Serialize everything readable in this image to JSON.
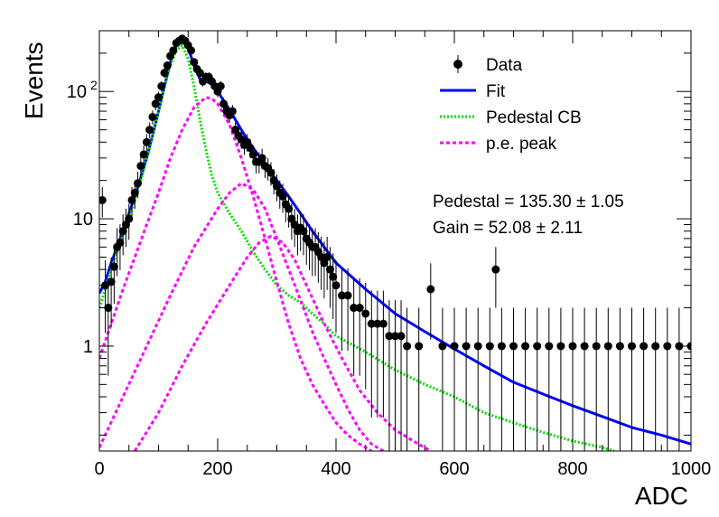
{
  "chart_data": {
    "type": "scatter",
    "title": "",
    "xlabel": "ADC",
    "ylabel": "Events",
    "xlim": [
      0,
      1000
    ],
    "ylim": [
      0.15,
      300
    ],
    "yscale": "log",
    "grid": false,
    "legend_position": "top-right",
    "x_ticks": [
      {
        "value": 0,
        "label": "0"
      },
      {
        "value": 200,
        "label": "200"
      },
      {
        "value": 400,
        "label": "400"
      },
      {
        "value": 600,
        "label": "600"
      },
      {
        "value": 800,
        "label": "800"
      },
      {
        "value": 1000,
        "label": "1000"
      }
    ],
    "y_ticks": [
      {
        "value": 1,
        "label": "1",
        "exp": ""
      },
      {
        "value": 10,
        "label": "10",
        "exp": ""
      },
      {
        "value": 100,
        "label": "10",
        "exp": "2"
      }
    ],
    "legend": [
      {
        "key": "data",
        "label": "Data",
        "style": "marker",
        "color": "#000000"
      },
      {
        "key": "fit",
        "label": "Fit",
        "style": "solid",
        "color": "#0000ff"
      },
      {
        "key": "ped",
        "label": "Pedestal CB",
        "style": "dotted",
        "color": "#00dd00"
      },
      {
        "key": "pe",
        "label": "p.e. peak",
        "style": "dashed",
        "color": "#ff00ff"
      }
    ],
    "annotations": [
      {
        "key": "pedestal",
        "text": "Pedestal = 135.30 ± 1.05"
      },
      {
        "key": "gain",
        "text": "Gain = 52.08 ± 2.11"
      }
    ],
    "series": [
      {
        "name": "Data",
        "kind": "points",
        "color": "#000000",
        "x": [
          5,
          10,
          15,
          20,
          25,
          30,
          35,
          40,
          45,
          50,
          55,
          60,
          65,
          70,
          75,
          80,
          85,
          90,
          95,
          100,
          105,
          110,
          115,
          120,
          125,
          130,
          135,
          140,
          145,
          150,
          155,
          160,
          165,
          170,
          175,
          180,
          185,
          190,
          195,
          200,
          205,
          210,
          215,
          220,
          225,
          230,
          235,
          240,
          245,
          250,
          255,
          260,
          265,
          270,
          275,
          280,
          285,
          290,
          295,
          300,
          305,
          310,
          315,
          320,
          325,
          330,
          335,
          340,
          345,
          350,
          355,
          360,
          365,
          370,
          375,
          380,
          385,
          390,
          395,
          400,
          410,
          420,
          430,
          440,
          450,
          460,
          470,
          480,
          490,
          500,
          510,
          520,
          540,
          560,
          580,
          600,
          620,
          640,
          660,
          670,
          680,
          700,
          720,
          740,
          760,
          780,
          800,
          820,
          840,
          860,
          880,
          900,
          920,
          940,
          960,
          980,
          1000
        ],
        "y": [
          14,
          3,
          2,
          3.2,
          4.2,
          6,
          6.5,
          8,
          9,
          10,
          14,
          16,
          19,
          26,
          32,
          40,
          50,
          63,
          80,
          90,
          110,
          140,
          160,
          190,
          210,
          240,
          250,
          260,
          250,
          230,
          210,
          170,
          150,
          140,
          120,
          130,
          130,
          120,
          110,
          100,
          110,
          80,
          70,
          65,
          70,
          50,
          45,
          42,
          38,
          40,
          36,
          32,
          28,
          28,
          30,
          26,
          25,
          23,
          20,
          18,
          16,
          15,
          13,
          12,
          10,
          9,
          8,
          8.5,
          8,
          7,
          6.5,
          6,
          6,
          5.5,
          5,
          4.5,
          5,
          4,
          3.5,
          3,
          2.5,
          2.5,
          2,
          2,
          1.8,
          1.5,
          1.5,
          1.5,
          1.2,
          1.2,
          1.2,
          1,
          1,
          2.8,
          1,
          1,
          1,
          1,
          1,
          4,
          1,
          1,
          1,
          1,
          1,
          1,
          1,
          1,
          1,
          1,
          1,
          1,
          1,
          1,
          1,
          1,
          1
        ]
      },
      {
        "name": "Fit",
        "kind": "line",
        "color": "#0000ff",
        "x": [
          0,
          10,
          20,
          30,
          40,
          50,
          60,
          70,
          80,
          90,
          100,
          110,
          120,
          130,
          140,
          150,
          160,
          170,
          180,
          190,
          200,
          210,
          220,
          230,
          240,
          250,
          260,
          270,
          280,
          290,
          300,
          320,
          340,
          360,
          380,
          400,
          450,
          500,
          550,
          600,
          650,
          700,
          750,
          800,
          850,
          900,
          950,
          1000
        ],
        "y": [
          2.6,
          3.2,
          4.5,
          6,
          8,
          11,
          15,
          21,
          30,
          45,
          70,
          110,
          170,
          230,
          250,
          220,
          160,
          125,
          120,
          115,
          100,
          85,
          72,
          60,
          50,
          42,
          36,
          31,
          27,
          23,
          20,
          15,
          11,
          8,
          6,
          4.5,
          2.8,
          1.8,
          1.3,
          0.95,
          0.7,
          0.52,
          0.42,
          0.34,
          0.28,
          0.23,
          0.2,
          0.17
        ]
      },
      {
        "name": "Pedestal CB",
        "kind": "line",
        "color": "#00dd00",
        "x": [
          0,
          10,
          20,
          30,
          40,
          50,
          60,
          70,
          80,
          90,
          100,
          110,
          120,
          130,
          140,
          150,
          160,
          170,
          180,
          190,
          200,
          220,
          240,
          260,
          280,
          300,
          320,
          340,
          360,
          380,
          400,
          450,
          500,
          550,
          600,
          650,
          700,
          750,
          800,
          850,
          870
        ],
        "y": [
          2,
          2.8,
          4,
          5.5,
          7.5,
          10,
          14,
          20,
          30,
          45,
          70,
          110,
          160,
          210,
          230,
          180,
          110,
          60,
          35,
          22,
          16,
          11,
          8,
          5.5,
          4,
          3,
          2.5,
          2.2,
          1.8,
          1.5,
          1.2,
          0.9,
          0.65,
          0.5,
          0.4,
          0.3,
          0.25,
          0.21,
          0.18,
          0.16,
          0.15
        ]
      },
      {
        "name": "p.e. peak 1",
        "kind": "line",
        "color": "#ff00ff",
        "x": [
          0,
          20,
          40,
          60,
          80,
          100,
          120,
          140,
          160,
          180,
          190,
          200,
          220,
          240,
          260,
          280,
          300,
          320,
          340,
          360,
          380,
          400,
          420,
          440,
          460
        ],
        "y": [
          0.8,
          1.5,
          2.8,
          5,
          9,
          16,
          30,
          50,
          75,
          90,
          88,
          80,
          55,
          30,
          15,
          7,
          3.2,
          1.5,
          0.8,
          0.5,
          0.35,
          0.25,
          0.2,
          0.17,
          0.15
        ]
      },
      {
        "name": "p.e. peak 2",
        "kind": "line",
        "color": "#ff00ff",
        "x": [
          0,
          40,
          80,
          120,
          160,
          200,
          220,
          240,
          260,
          280,
          300,
          320,
          340,
          360,
          380,
          400,
          420,
          440,
          460,
          480
        ],
        "y": [
          0.16,
          0.4,
          1,
          2.5,
          6,
          12,
          16,
          19,
          17,
          12,
          7,
          4,
          2.3,
          1.3,
          0.8,
          0.5,
          0.32,
          0.22,
          0.17,
          0.15
        ]
      },
      {
        "name": "p.e. peak 3",
        "kind": "line",
        "color": "#ff00ff",
        "x": [
          60,
          100,
          140,
          180,
          220,
          250,
          270,
          290,
          310,
          330,
          350,
          380,
          410,
          440,
          470,
          500,
          530,
          560
        ],
        "y": [
          0.15,
          0.3,
          0.7,
          1.5,
          3,
          5,
          6.5,
          7.3,
          6.5,
          4.8,
          3,
          1.5,
          0.8,
          0.45,
          0.3,
          0.22,
          0.18,
          0.15
        ]
      }
    ]
  }
}
